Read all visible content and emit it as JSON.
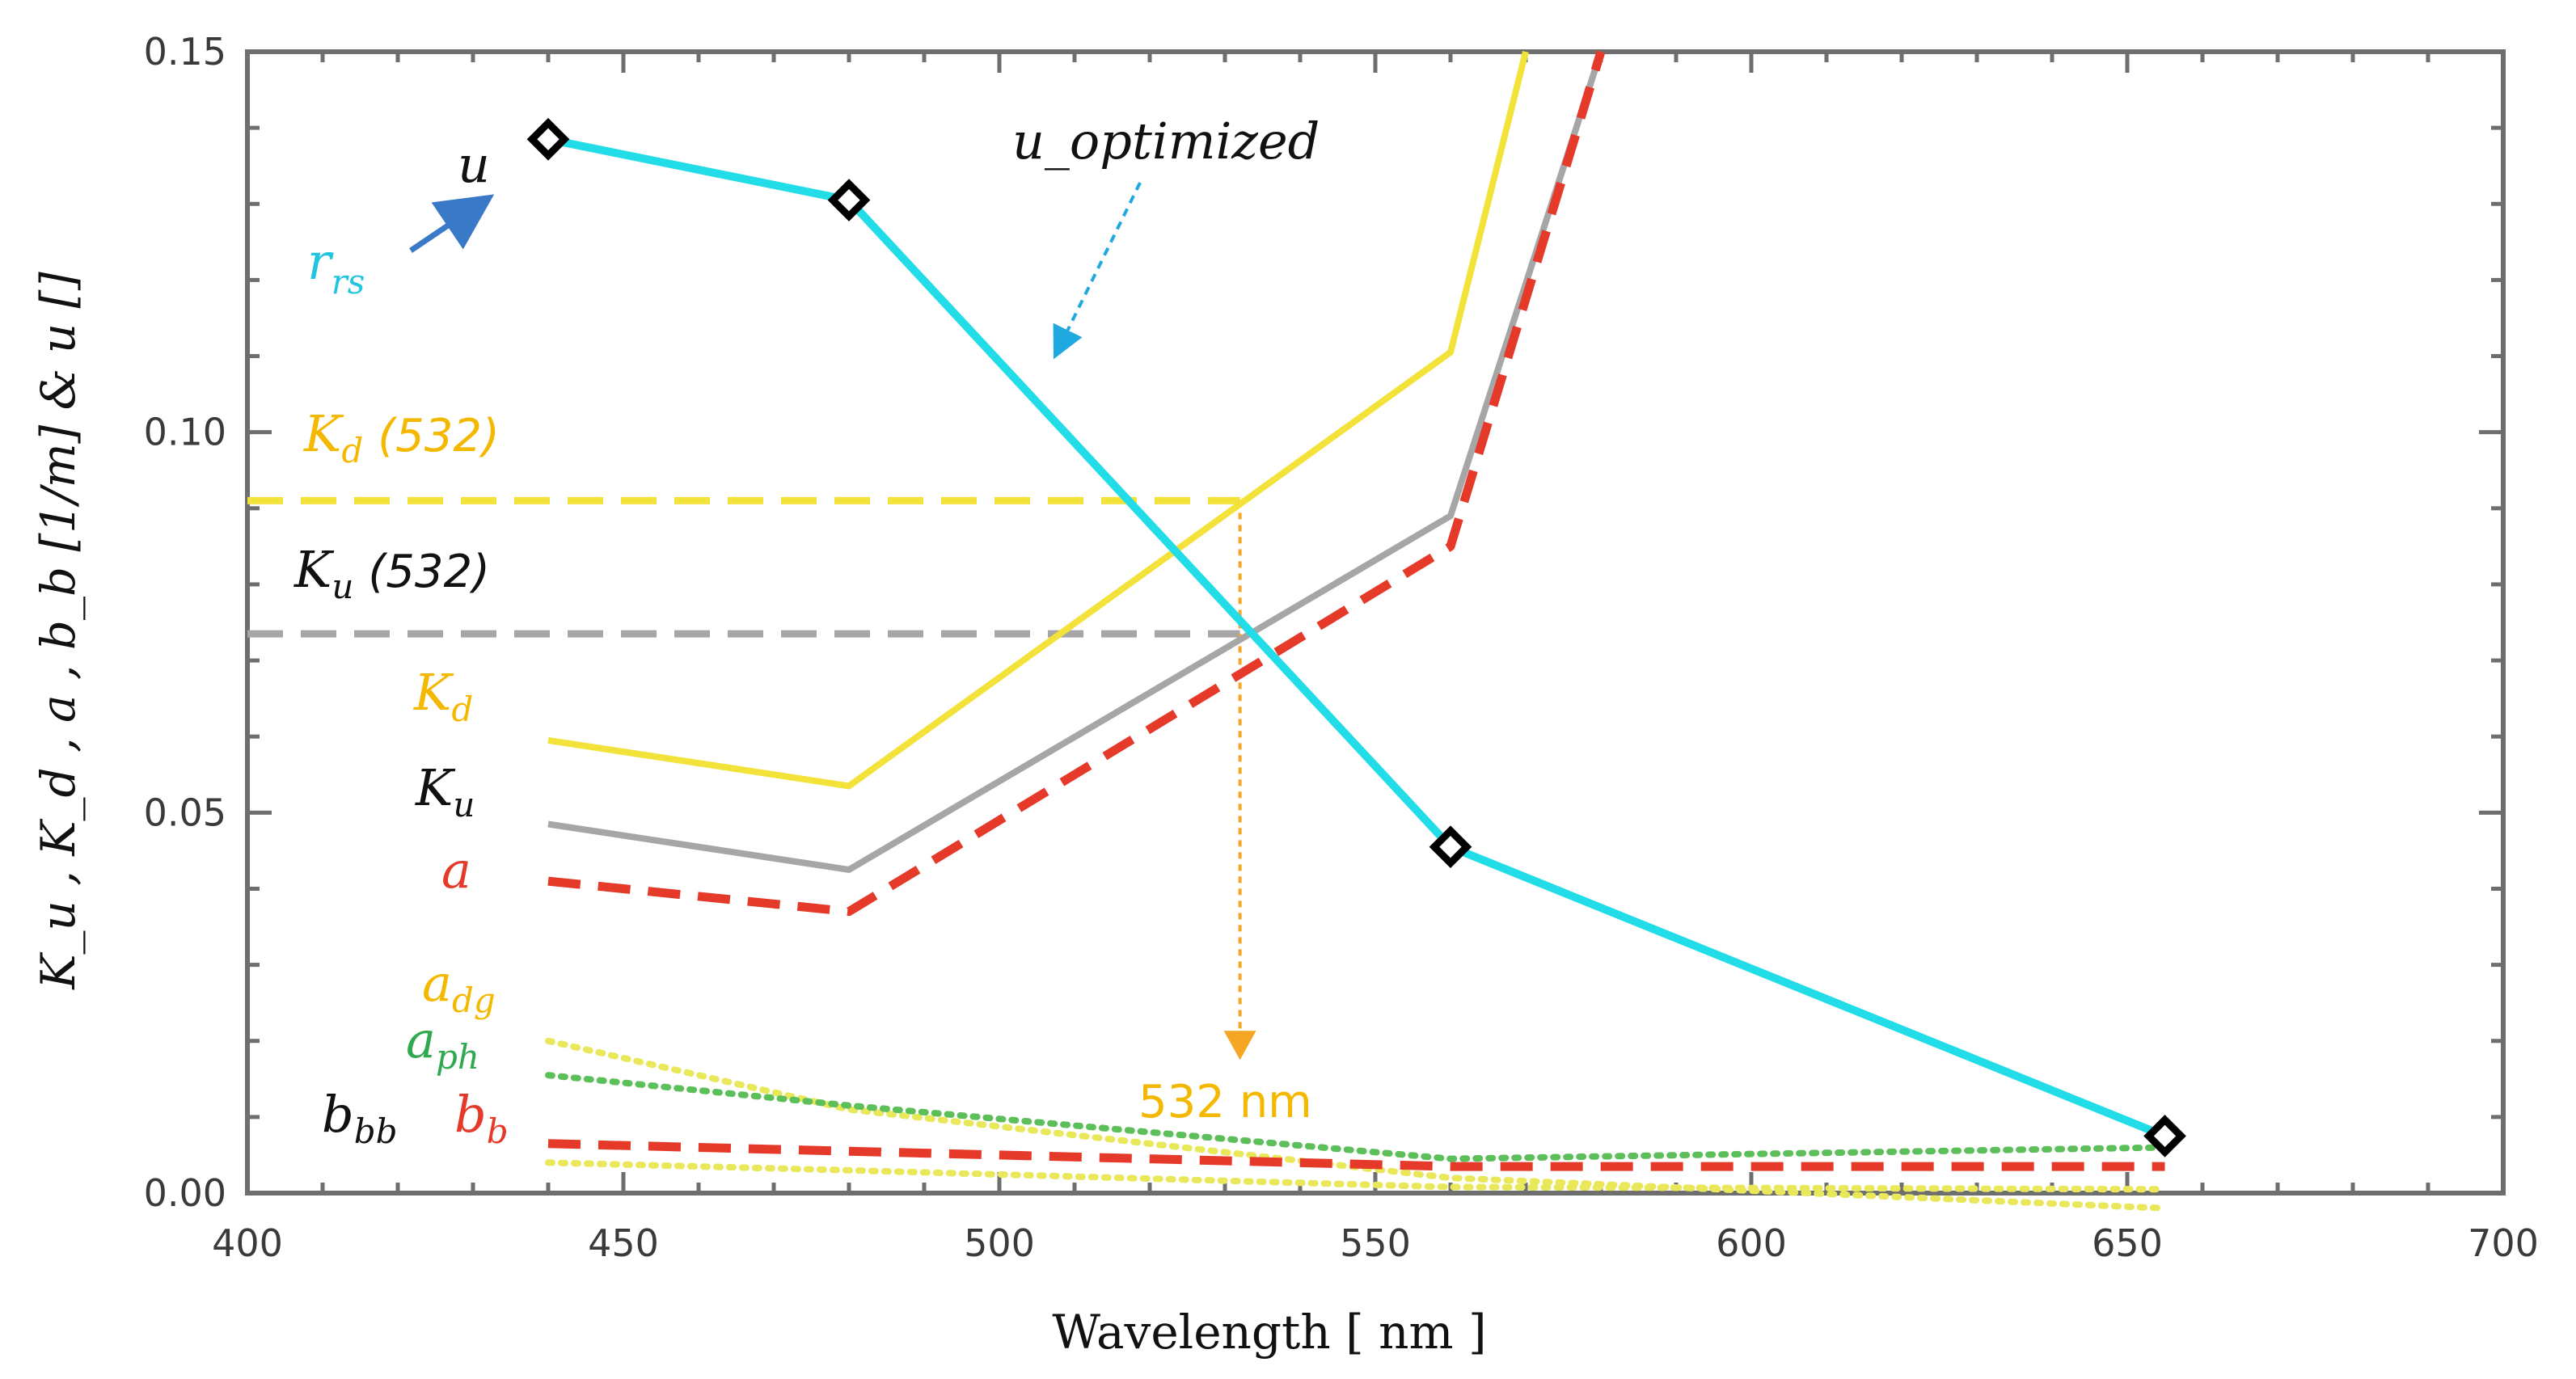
{
  "chart_data": {
    "type": "line",
    "xlabel": "Wavelength [ nm ]",
    "ylabel": "K_u , K_d , a , b_b [1/m] & u []",
    "xlim": [
      400,
      700
    ],
    "ylim": [
      0,
      0.15
    ],
    "x_ticks": [
      400,
      450,
      500,
      550,
      600,
      650,
      700
    ],
    "x_tick_labels": [
      "400",
      "450",
      "500",
      "550",
      "600",
      "650",
      "700"
    ],
    "y_ticks": [
      0,
      0.05,
      0.1,
      0.15
    ],
    "y_tick_labels": [
      "0.00",
      "0.05",
      "0.10",
      "0.15"
    ],
    "series": [
      {
        "name": "u",
        "style": "solid",
        "color": "#22dde8",
        "markers": true,
        "x": [
          440,
          480,
          560,
          655
        ],
        "y": [
          0.1385,
          0.1305,
          0.0455,
          0.0075
        ]
      },
      {
        "name": "K_d",
        "style": "solid",
        "color": "#f2e23a",
        "x": [
          440,
          480,
          560,
          570
        ],
        "y": [
          0.0595,
          0.0535,
          0.1105,
          0.15
        ]
      },
      {
        "name": "K_u",
        "style": "solid",
        "color": "#a6a6a6",
        "x": [
          440,
          480,
          560,
          580
        ],
        "y": [
          0.0485,
          0.0425,
          0.089,
          0.15
        ]
      },
      {
        "name": "a",
        "style": "dashed",
        "color": "#e53a2a",
        "x": [
          440,
          480,
          560,
          580
        ],
        "y": [
          0.041,
          0.037,
          0.085,
          0.15
        ]
      },
      {
        "name": "a_dg",
        "style": "dotted",
        "color": "#e8e85a",
        "x": [
          440,
          480,
          560,
          655
        ],
        "y": [
          0.02,
          0.011,
          0.002,
          -0.002
        ]
      },
      {
        "name": "a_ph",
        "style": "dotted",
        "color": "#5cbf5a",
        "x": [
          440,
          480,
          560,
          655
        ],
        "y": [
          0.0155,
          0.0115,
          0.0045,
          0.006
        ]
      },
      {
        "name": "b_b",
        "style": "dashed",
        "color": "#e53a2a",
        "x": [
          440,
          480,
          560,
          655
        ],
        "y": [
          0.0065,
          0.0055,
          0.0035,
          0.0035
        ]
      },
      {
        "name": "b_bb",
        "style": "dotted",
        "color": "#e8e85a",
        "x": [
          440,
          480,
          560,
          655
        ],
        "y": [
          0.004,
          0.003,
          0.0008,
          0.0005
        ]
      }
    ],
    "reference_lines": [
      {
        "name": "K_d (532)",
        "y": 0.091,
        "x_from": 400,
        "x_to": 532,
        "color": "#f2e23a"
      },
      {
        "name": "K_u (532)",
        "y": 0.0735,
        "x_from": 400,
        "x_to": 532,
        "color": "#a6a6a6"
      }
    ],
    "vertical_marker": {
      "x": 532,
      "y_from": 0.091,
      "y_to": 0.0175,
      "color": "#f5a623",
      "label": "532 nm"
    }
  },
  "labels": {
    "u": "u",
    "r_main": "r",
    "r_sub": "rs",
    "u_optimized": "u_optimized",
    "kd532_main": "K",
    "kd532_sub": "d",
    "kd532_suffix": "(532)",
    "ku532_main": "K",
    "ku532_sub": "u",
    "ku532_suffix": "(532)",
    "kd_main": "K",
    "kd_sub": "d",
    "ku_main": "K",
    "ku_sub": "u",
    "a": "a",
    "adg_main": "a",
    "adg_sub": "dg",
    "aph_main": "a",
    "aph_sub": "ph",
    "bbb_main": "b",
    "bbb_sub": "bb",
    "bb_main": "b",
    "bb_sub": "b",
    "nm532": "532 nm"
  },
  "colors": {
    "cyan": "#22dde8",
    "yellow": "#f2e23a",
    "gold": "#f5b800",
    "gray": "#a6a6a6",
    "red": "#e53a2a",
    "green": "#2fa84f",
    "arrow_blue": "#3a78c8"
  }
}
